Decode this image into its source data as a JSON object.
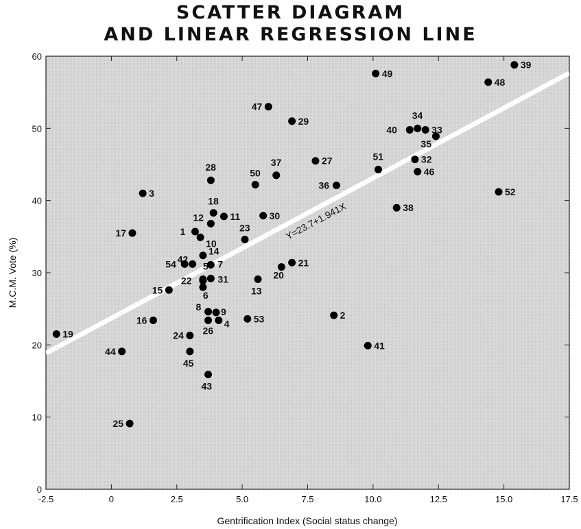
{
  "chart_data": {
    "type": "scatter",
    "title_line1": "SCATTER DIAGRAM",
    "title_line2": "AND LINEAR REGRESSION LINE",
    "xlabel": "Gentrification Index (Social status change)",
    "ylabel": "M.C.M. Vote (%)",
    "xlim": [
      -2.5,
      17.5
    ],
    "ylim": [
      0,
      60
    ],
    "x_ticks": [
      "-2.5",
      "0",
      "2.5",
      "5.0",
      "7.5",
      "10.0",
      "12.5",
      "15.0",
      "17.5"
    ],
    "y_ticks": [
      "0",
      "10",
      "20",
      "30",
      "40",
      "50",
      "60"
    ],
    "regression": {
      "equation": "Y=23.7+1.941X",
      "intercept": 23.7,
      "slope": 1.941
    },
    "points": [
      {
        "label": "1",
        "x": 3.2,
        "y": 35.7
      },
      {
        "label": "2",
        "x": 8.5,
        "y": 24.1
      },
      {
        "label": "3",
        "x": 1.2,
        "y": 41.0
      },
      {
        "label": "4",
        "x": 4.1,
        "y": 23.4
      },
      {
        "label": "5",
        "x": 3.5,
        "y": 29.1
      },
      {
        "label": "6",
        "x": 3.5,
        "y": 28.0
      },
      {
        "label": "7",
        "x": 3.8,
        "y": 31.1
      },
      {
        "label": "8",
        "x": 3.7,
        "y": 24.6
      },
      {
        "label": "9",
        "x": 4.0,
        "y": 24.5
      },
      {
        "label": "10",
        "x": 3.4,
        "y": 34.9
      },
      {
        "label": "11",
        "x": 4.3,
        "y": 37.8
      },
      {
        "label": "12",
        "x": 3.8,
        "y": 36.8
      },
      {
        "label": "13",
        "x": 5.6,
        "y": 29.1
      },
      {
        "label": "14",
        "x": 3.5,
        "y": 32.4
      },
      {
        "label": "15",
        "x": 2.2,
        "y": 27.6
      },
      {
        "label": "16",
        "x": 1.6,
        "y": 23.4
      },
      {
        "label": "17",
        "x": 0.8,
        "y": 35.5
      },
      {
        "label": "18",
        "x": 3.9,
        "y": 38.3
      },
      {
        "label": "19",
        "x": -2.1,
        "y": 21.5
      },
      {
        "label": "20",
        "x": 6.5,
        "y": 30.8
      },
      {
        "label": "21",
        "x": 6.9,
        "y": 31.4
      },
      {
        "label": "22",
        "x": 3.5,
        "y": 28.9
      },
      {
        "label": "23",
        "x": 5.1,
        "y": 34.6
      },
      {
        "label": "24",
        "x": 3.0,
        "y": 21.3
      },
      {
        "label": "25",
        "x": 0.7,
        "y": 9.1
      },
      {
        "label": "26",
        "x": 3.7,
        "y": 23.4
      },
      {
        "label": "27",
        "x": 7.8,
        "y": 45.5
      },
      {
        "label": "28",
        "x": 3.8,
        "y": 42.8
      },
      {
        "label": "29",
        "x": 6.9,
        "y": 51.0
      },
      {
        "label": "30",
        "x": 5.8,
        "y": 37.9
      },
      {
        "label": "31",
        "x": 3.8,
        "y": 29.2
      },
      {
        "label": "32",
        "x": 11.6,
        "y": 45.7
      },
      {
        "label": "33",
        "x": 12.0,
        "y": 49.8
      },
      {
        "label": "34",
        "x": 11.7,
        "y": 50.0
      },
      {
        "label": "35",
        "x": 12.4,
        "y": 48.9
      },
      {
        "label": "36",
        "x": 8.6,
        "y": 42.1
      },
      {
        "label": "37",
        "x": 6.3,
        "y": 43.5
      },
      {
        "label": "38",
        "x": 10.9,
        "y": 39.0
      },
      {
        "label": "39",
        "x": 15.4,
        "y": 58.8
      },
      {
        "label": "40",
        "x": 11.4,
        "y": 49.8
      },
      {
        "label": "41",
        "x": 9.8,
        "y": 19.9
      },
      {
        "label": "42",
        "x": 3.1,
        "y": 31.2
      },
      {
        "label": "43",
        "x": 3.7,
        "y": 15.9
      },
      {
        "label": "44",
        "x": 0.4,
        "y": 19.1
      },
      {
        "label": "45",
        "x": 3.0,
        "y": 19.1
      },
      {
        "label": "46",
        "x": 11.7,
        "y": 44.0
      },
      {
        "label": "47",
        "x": 6.0,
        "y": 53.0
      },
      {
        "label": "48",
        "x": 14.4,
        "y": 56.4
      },
      {
        "label": "49",
        "x": 10.1,
        "y": 57.6
      },
      {
        "label": "50",
        "x": 5.5,
        "y": 42.2
      },
      {
        "label": "51",
        "x": 10.2,
        "y": 44.3
      },
      {
        "label": "52",
        "x": 14.8,
        "y": 41.2
      },
      {
        "label": "53",
        "x": 5.2,
        "y": 23.6
      },
      {
        "label": "54",
        "x": 2.8,
        "y": 31.2
      }
    ],
    "grid": false,
    "legend": "none"
  }
}
